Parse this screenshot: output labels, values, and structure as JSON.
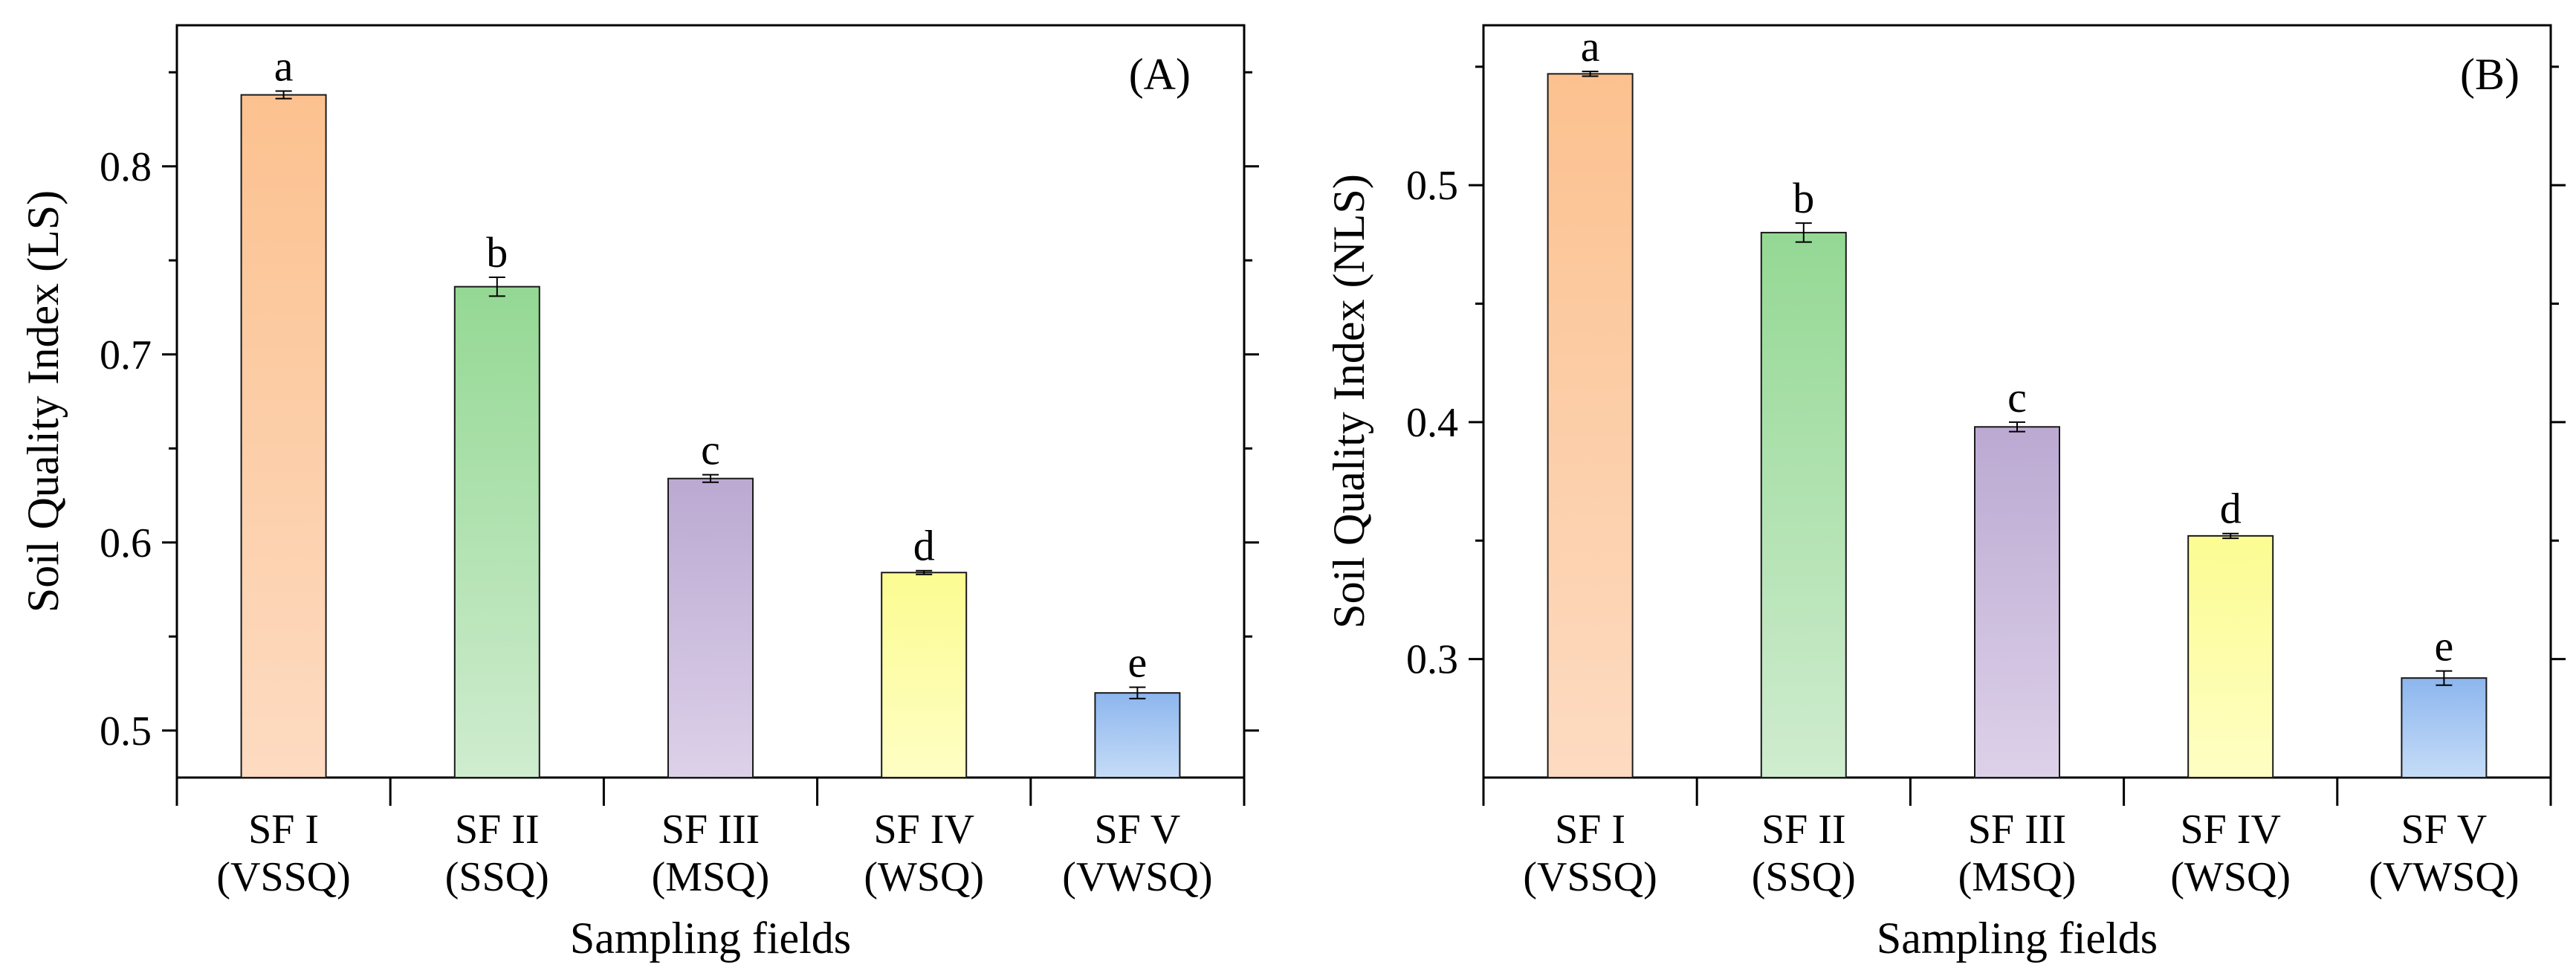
{
  "chart_data": [
    {
      "type": "bar",
      "panel_label": "(A)",
      "xlabel": "Sampling fields",
      "ylabel": "Soil Quality Index (LS)",
      "ylim": [
        0.475,
        0.875
      ],
      "yticks": [
        "0.5",
        "0.6",
        "0.7",
        "0.8"
      ],
      "ytick_values": [
        0.5,
        0.6,
        0.7,
        0.8
      ],
      "categories": [
        [
          "SF I",
          "(VSSQ)"
        ],
        [
          "SF II",
          "(SSQ)"
        ],
        [
          "SF III",
          "(MSQ)"
        ],
        [
          "SF IV",
          "(WSQ)"
        ],
        [
          "SF V",
          "(VWSQ)"
        ]
      ],
      "values": [
        0.838,
        0.736,
        0.634,
        0.584,
        0.52
      ],
      "errors": [
        0.002,
        0.005,
        0.002,
        0.001,
        0.003
      ],
      "significance": [
        "a",
        "b",
        "c",
        "d",
        "e"
      ],
      "bar_colors": [
        [
          "#fcc18f",
          "#fddbc1"
        ],
        [
          "#94d894",
          "#cfeccf"
        ],
        [
          "#bba9d2",
          "#ddd1e9"
        ],
        [
          "#fcfc92",
          "#fefec4"
        ],
        [
          "#8db6ee",
          "#c5dcf7"
        ]
      ]
    },
    {
      "type": "bar",
      "panel_label": "(B)",
      "xlabel": "Sampling fields",
      "ylabel": "Soil Quality Index (NLS)",
      "ylim": [
        0.25,
        0.5675
      ],
      "yticks": [
        "0.3",
        "0.4",
        "0.5"
      ],
      "ytick_values": [
        0.3,
        0.4,
        0.5
      ],
      "categories": [
        [
          "SF I",
          "(VSSQ)"
        ],
        [
          "SF II",
          "(SSQ)"
        ],
        [
          "SF III",
          "(MSQ)"
        ],
        [
          "SF IV",
          "(WSQ)"
        ],
        [
          "SF V",
          "(VWSQ)"
        ]
      ],
      "values": [
        0.547,
        0.48,
        0.398,
        0.352,
        0.292
      ],
      "errors": [
        0.001,
        0.004,
        0.002,
        0.001,
        0.003
      ],
      "significance": [
        "a",
        "b",
        "c",
        "d",
        "e"
      ],
      "bar_colors": [
        [
          "#fcc18f",
          "#fddbc1"
        ],
        [
          "#94d894",
          "#cfeccf"
        ],
        [
          "#bba9d2",
          "#ddd1e9"
        ],
        [
          "#fcfc92",
          "#fefec4"
        ],
        [
          "#8db6ee",
          "#c5dcf7"
        ]
      ]
    }
  ]
}
